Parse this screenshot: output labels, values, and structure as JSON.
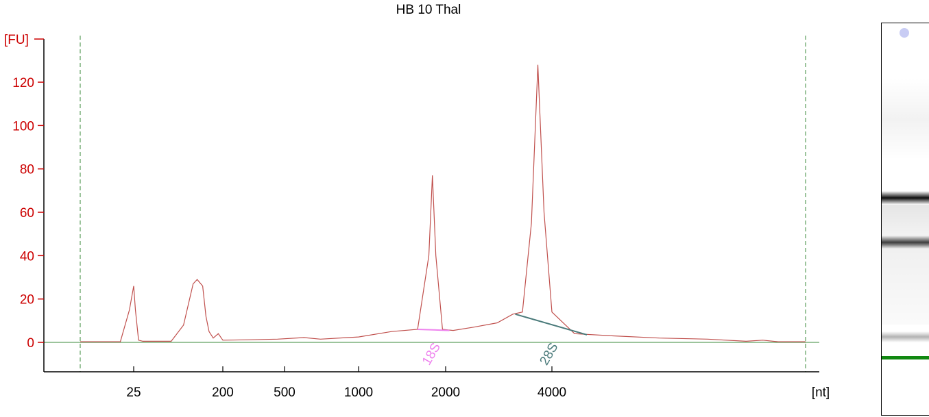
{
  "chart_data": {
    "type": "line",
    "title": "HB 10 Thal",
    "ylabel": "[FU]",
    "xlabel": "[nt]",
    "yticks": [
      0,
      20,
      40,
      60,
      80,
      100,
      120
    ],
    "ylim": [
      -12,
      140
    ],
    "xticks": [
      "25",
      "200",
      "500",
      "1000",
      "2000",
      "4000"
    ],
    "x_scale": "electropherogram (non-linear)",
    "grid": false,
    "axis_color": "#cc0000",
    "series": [
      {
        "color": "#c0504d",
        "points": [
          [
            "15",
            0.3
          ],
          [
            "22",
            0.3
          ],
          [
            "24",
            15
          ],
          [
            "25",
            26
          ],
          [
            "26",
            15
          ],
          [
            "28",
            1
          ],
          [
            "31",
            0.5
          ],
          [
            "60",
            0.5
          ],
          [
            "80",
            8
          ],
          [
            "100",
            27
          ],
          [
            "110",
            29
          ],
          [
            "125",
            26
          ],
          [
            "135",
            12
          ],
          [
            "145",
            5
          ],
          [
            "160",
            2
          ],
          [
            "180",
            4
          ],
          [
            "200",
            1
          ],
          [
            "300",
            1.2
          ],
          [
            "450",
            1.5
          ],
          [
            "600",
            2.2
          ],
          [
            "700",
            1.5
          ],
          [
            "1000",
            2.5
          ],
          [
            "1300",
            5
          ],
          [
            "1600",
            6
          ],
          [
            "1750",
            40
          ],
          [
            "1800",
            77
          ],
          [
            "1850",
            40
          ],
          [
            "1950",
            6
          ],
          [
            "2100",
            5.5
          ],
          [
            "2400",
            7
          ],
          [
            "2800",
            9
          ],
          [
            "3100",
            13
          ],
          [
            "3300",
            14
          ],
          [
            "3500",
            55
          ],
          [
            "3650",
            128
          ],
          [
            "3800",
            60
          ],
          [
            "4000",
            14
          ],
          [
            "4500",
            4
          ],
          [
            "5500",
            3
          ],
          [
            "7000",
            2
          ],
          [
            "9000",
            1.5
          ],
          [
            "11000",
            0.5
          ],
          [
            "12000",
            1
          ],
          [
            "13000",
            0.3
          ],
          [
            "15000",
            0.3
          ]
        ]
      }
    ],
    "markers": [
      {
        "label": "18S",
        "color": "#ee82ee",
        "from": [
          1600,
          6
        ],
        "to": [
          2050,
          5.5
        ]
      },
      {
        "label": "28S",
        "color": "#4a7a7a",
        "from": [
          3150,
          13
        ],
        "to": [
          4800,
          3.5
        ]
      }
    ]
  },
  "gel": {
    "marker_color": "#118811",
    "bands": [
      {
        "name": "28S",
        "darkness": 0.95
      },
      {
        "name": "18S",
        "darkness": 0.75
      },
      {
        "name": "lower",
        "darkness": 0.3
      }
    ]
  }
}
